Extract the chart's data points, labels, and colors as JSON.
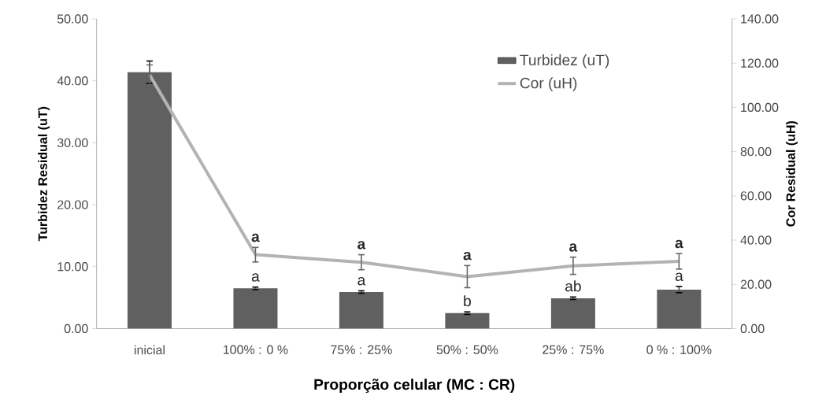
{
  "chart_data": {
    "type": "bar",
    "xlabel": "Proporção celular (MC : CR)",
    "ylabel": "Turbidez Residual (uT)",
    "y2label": "Cor Residual (uH)",
    "categories": [
      "inicial",
      "100% : 0 %",
      "75% : 25%",
      "50% : 50%",
      "25% : 75%",
      "0 % : 100%"
    ],
    "series": [
      {
        "name": "Turbidez (uT)",
        "color": "#606060",
        "values": [
          41.4,
          6.5,
          5.9,
          2.5,
          4.9,
          6.3
        ],
        "errors": [
          1.8,
          0.2,
          0.2,
          0.2,
          0.2,
          0.5
        ]
      },
      {
        "name": "Cor (uH)",
        "type": "line",
        "axis": "y2",
        "color": "#b3b3b3",
        "values": [
          114.7,
          33.4,
          30.0,
          23.5,
          28.4,
          30.4
        ],
        "errors": [
          4.5,
          3.3,
          3.4,
          5.0,
          3.9,
          3.5
        ]
      }
    ],
    "ylim": [
      0,
      50
    ],
    "yticks": [
      {
        "value": 0,
        "label": "0.00"
      },
      {
        "value": 10,
        "label": "10.00"
      },
      {
        "value": 20,
        "label": "20.00"
      },
      {
        "value": 30,
        "label": "30.00"
      },
      {
        "value": 40,
        "label": "40.00"
      },
      {
        "value": 50,
        "label": "50.00"
      }
    ],
    "y2lim": [
      0,
      140
    ],
    "y2ticks": [
      {
        "value": 0,
        "label": "0.00"
      },
      {
        "value": 20,
        "label": "20.00"
      },
      {
        "value": 40,
        "label": "40.00"
      },
      {
        "value": 60,
        "label": "60.00"
      },
      {
        "value": 80,
        "label": "80.00"
      },
      {
        "value": 100,
        "label": "100.00"
      },
      {
        "value": 120,
        "label": "120.00"
      },
      {
        "value": 140,
        "label": "140.00"
      }
    ],
    "annotations": [
      {
        "text": "a",
        "x": "100% : 0 %",
        "y": 6.5
      },
      {
        "text": "a",
        "x": "75% : 25%",
        "y": 5.9
      },
      {
        "text": "b",
        "x": "50% : 50%",
        "y": 2.5
      },
      {
        "text": "ab",
        "x": "25% : 75%",
        "y": 4.9
      },
      {
        "text": "a",
        "x": "0 % : 100%",
        "y": 6.3
      },
      "**a**",
      "**a**",
      "**a**",
      "**a**",
      "**a**"
    ],
    "grid": false,
    "legend": "top right",
    "marker": "none",
    "line_style": "solid"
  }
}
